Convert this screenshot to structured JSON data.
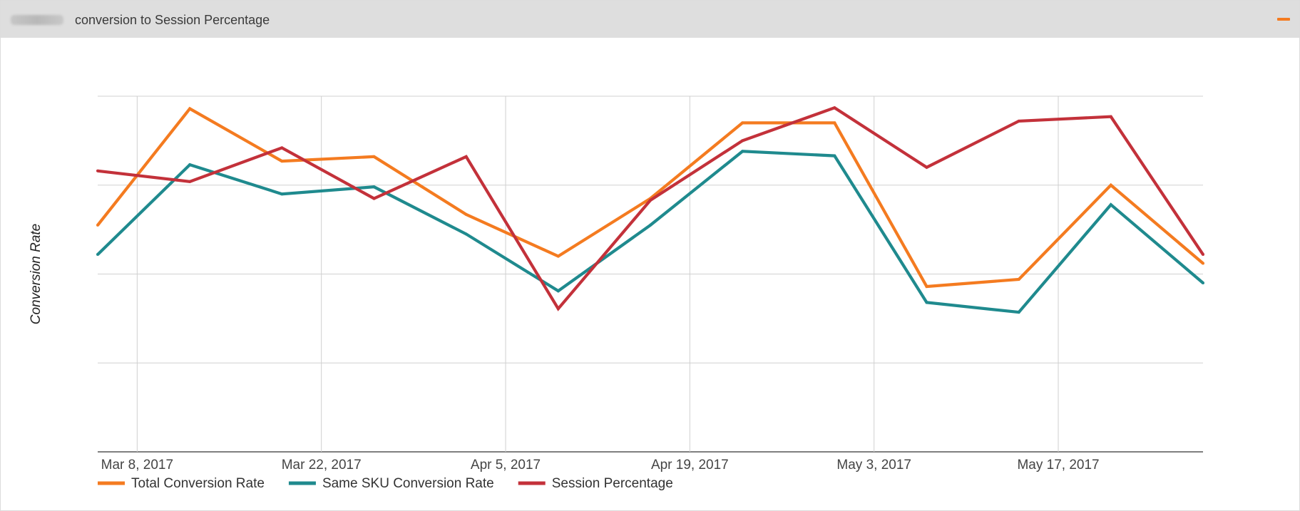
{
  "panel": {
    "title": "conversion to Session Percentage",
    "collapse_icon": "minus-icon",
    "accent_color": "#f47b20",
    "header_bg": "#dedede"
  },
  "chart_data": {
    "type": "line",
    "title": "",
    "xlabel": "",
    "ylabel": "Conversion Rate",
    "x_tick_labels": [
      "Mar 8, 2017",
      "Mar 22, 2017",
      "Apr 5, 2017",
      "Apr 19, 2017",
      "May 3, 2017",
      "May 17, 2017"
    ],
    "x_tick_dates": [
      "2017-03-08",
      "2017-03-22",
      "2017-04-05",
      "2017-04-19",
      "2017-05-03",
      "2017-05-17"
    ],
    "x": [
      "2017-03-05",
      "2017-03-12",
      "2017-03-19",
      "2017-03-26",
      "2017-04-02",
      "2017-04-09",
      "2017-04-16",
      "2017-04-23",
      "2017-04-30",
      "2017-05-07",
      "2017-05-14",
      "2017-05-21",
      "2017-05-28"
    ],
    "xlim": [
      "2017-03-05",
      "2017-05-28"
    ],
    "ylim": [
      0,
      4
    ],
    "y_gridlines": [
      0,
      1,
      2,
      3,
      4
    ],
    "y_tick_labels_visible": false,
    "grid": true,
    "legend_position": "bottom-left",
    "series": [
      {
        "name": "Total Conversion Rate",
        "color": "#f47b20",
        "values": [
          2.55,
          3.86,
          3.27,
          3.32,
          2.67,
          2.2,
          2.85,
          3.7,
          3.7,
          1.86,
          1.94,
          3.0,
          2.12
        ]
      },
      {
        "name": "Same SKU Conversion Rate",
        "color": "#1f8a8e",
        "values": [
          2.22,
          3.23,
          2.9,
          2.98,
          2.45,
          1.81,
          2.55,
          3.38,
          3.33,
          1.68,
          1.57,
          2.78,
          1.9
        ]
      },
      {
        "name": "Session Percentage",
        "color": "#c3313a",
        "values": [
          3.16,
          3.04,
          3.42,
          2.85,
          3.32,
          1.61,
          2.83,
          3.5,
          3.87,
          3.2,
          3.72,
          3.77,
          2.22
        ]
      }
    ]
  }
}
